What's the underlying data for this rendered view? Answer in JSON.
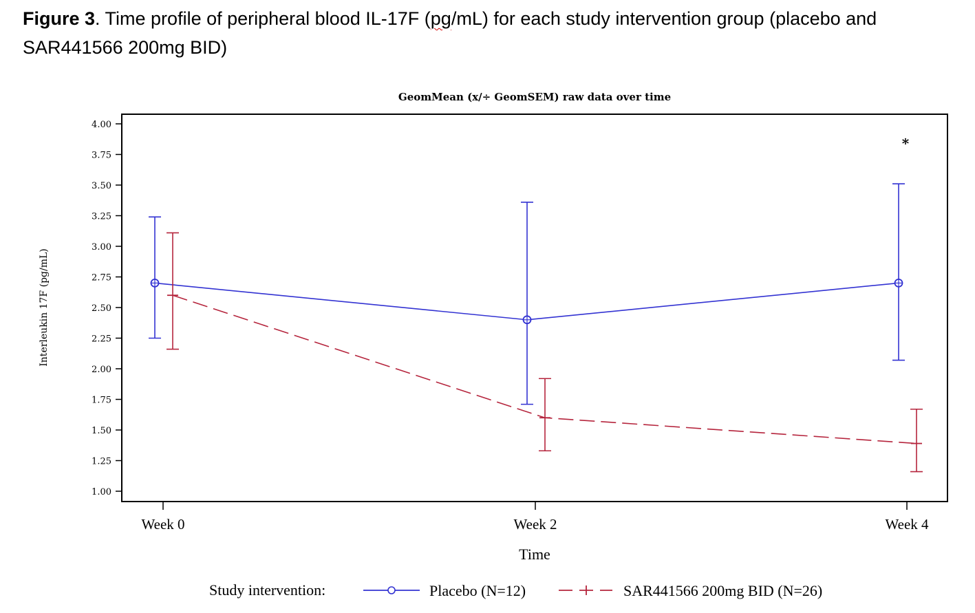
{
  "caption": {
    "label": "Figure 3",
    "text_before": ". Time profile of peripheral blood IL-17F (",
    "underlined": "pg",
    "text_after": "/mL) for each study intervention group (placebo and SAR441566 200mg BID)"
  },
  "chart_data": {
    "type": "line",
    "title": "GeomMean (x/÷ GeomSEM) raw data over time",
    "xlabel": "Time",
    "ylabel": "Interleukin 17F (pg/mL)",
    "categories": [
      "Week 0",
      "Week 2",
      "Week 4"
    ],
    "ylim": [
      1.0,
      4.0
    ],
    "yticks": [
      "1.00",
      "1.25",
      "1.50",
      "1.75",
      "2.00",
      "2.25",
      "2.50",
      "2.75",
      "3.00",
      "3.25",
      "3.50",
      "3.75",
      "4.00"
    ],
    "grid": false,
    "legend": {
      "title": "Study intervention:",
      "placement": "bottom"
    },
    "annotations": [
      {
        "text": "*",
        "category": "Week 4",
        "y": 3.88
      }
    ],
    "series": [
      {
        "name": "Placebo (N=12)",
        "color": "#3232d2",
        "line_style": "solid",
        "marker": "circle-plus",
        "values": [
          2.7,
          2.4,
          2.7
        ],
        "upper": [
          3.24,
          3.36,
          3.51
        ],
        "lower": [
          2.25,
          1.71,
          2.07
        ]
      },
      {
        "name": "SAR441566 200mg BID (N=26)",
        "color": "#b5243c",
        "line_style": "dashed",
        "marker": "plus",
        "values": [
          2.6,
          1.6,
          1.39
        ],
        "upper": [
          3.11,
          1.92,
          1.67
        ],
        "lower": [
          2.16,
          1.33,
          1.16
        ]
      }
    ]
  }
}
